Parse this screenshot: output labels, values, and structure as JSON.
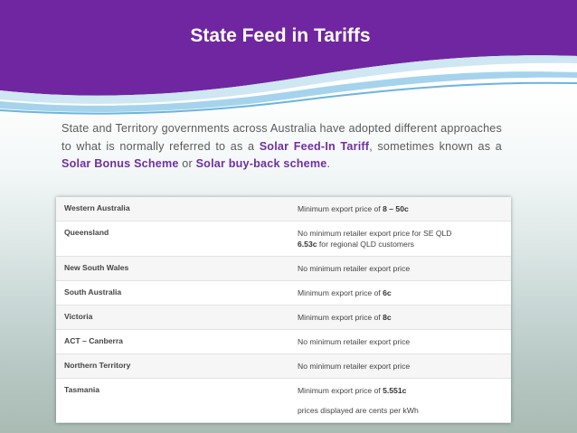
{
  "header": {
    "title": "State Feed in Tariffs"
  },
  "paragraph": [
    {
      "text": "State and Territory governments across Australia have adopted different approaches to what is normally referred to as a ",
      "bold": false
    },
    {
      "text": "Solar Feed-In Tariff",
      "bold": true
    },
    {
      "text": ", sometimes known as a ",
      "bold": false
    },
    {
      "text": "Solar Bonus Scheme",
      "bold": true
    },
    {
      "text": " or ",
      "bold": false
    },
    {
      "text": "Solar buy-back scheme",
      "bold": true
    },
    {
      "text": ".",
      "bold": false
    }
  ],
  "table": {
    "rows": [
      {
        "state": "Western Australia",
        "tariff": [
          [
            {
              "text": "Minimum export price of ",
              "bold": false
            },
            {
              "text": "8 – 50c",
              "bold": true
            }
          ]
        ]
      },
      {
        "state": "Queensland",
        "tariff": [
          [
            {
              "text": "No minimum retailer export price for SE QLD",
              "bold": false
            }
          ],
          [
            {
              "text": "6.53c",
              "bold": true
            },
            {
              "text": " for regional QLD customers",
              "bold": false
            }
          ]
        ]
      },
      {
        "state": "New South Wales",
        "tariff": [
          [
            {
              "text": "No minimum retailer export price",
              "bold": false
            }
          ]
        ]
      },
      {
        "state": "South Australia",
        "tariff": [
          [
            {
              "text": "Minimum export price of ",
              "bold": false
            },
            {
              "text": "6c",
              "bold": true
            }
          ]
        ]
      },
      {
        "state": "Victoria",
        "tariff": [
          [
            {
              "text": "Minimum export price of ",
              "bold": false
            },
            {
              "text": "8c",
              "bold": true
            }
          ]
        ]
      },
      {
        "state": "ACT – Canberra",
        "tariff": [
          [
            {
              "text": "No minimum retailer export price",
              "bold": false
            }
          ]
        ]
      },
      {
        "state": "Northern Territory",
        "tariff": [
          [
            {
              "text": "No minimum retailer export price",
              "bold": false
            }
          ]
        ]
      },
      {
        "state": "Tasmania",
        "tariff": [
          [
            {
              "text": "Minimum export price of ",
              "bold": false
            },
            {
              "text": "5.551c",
              "bold": true
            }
          ]
        ]
      }
    ],
    "note": "prices displayed are cents per kWh"
  }
}
